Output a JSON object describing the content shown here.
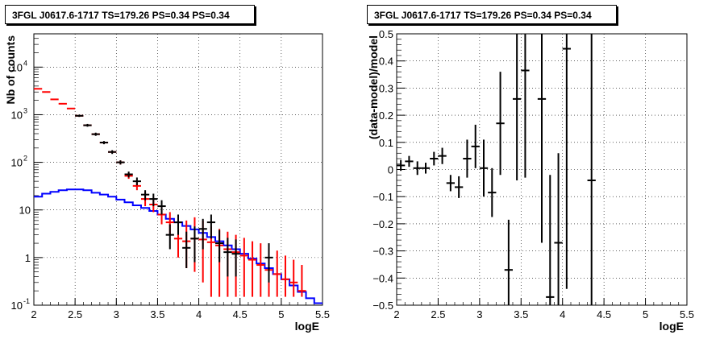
{
  "chart_data": [
    {
      "type": "line",
      "title": "3FGL J0617.6-1717 TS=179.26 PS=0.34 PS=0.34",
      "xlabel": "logE",
      "ylabel": "Nb of counts",
      "xlim": [
        2,
        5.5
      ],
      "ylim": [
        0.1,
        50000
      ],
      "yscale": "log",
      "grid": true,
      "xticks": [
        "2",
        "2.5",
        "3",
        "3.5",
        "4",
        "4.5",
        "5",
        "5.5"
      ],
      "yticks": [
        "10^-1",
        "1",
        "10",
        "10^2",
        "10^3",
        "10^4"
      ],
      "series": [
        {
          "color": "#0000ff",
          "style": "step",
          "x": [
            2.05,
            2.15,
            2.25,
            2.35,
            2.45,
            2.55,
            2.65,
            2.75,
            2.85,
            2.95,
            3.05,
            3.15,
            3.25,
            3.35,
            3.45,
            3.55,
            3.65,
            3.75,
            3.85,
            3.95,
            4.05,
            4.15,
            4.25,
            4.35,
            4.45,
            4.55,
            4.65,
            4.75,
            4.85,
            4.95,
            5.05,
            5.15,
            5.25,
            5.35,
            5.45
          ],
          "y": [
            19,
            22,
            24,
            26,
            27,
            27,
            26,
            23,
            21,
            19,
            16.5,
            14.5,
            12.5,
            11,
            9.5,
            8,
            6.5,
            5.5,
            4.6,
            3.9,
            3.3,
            2.7,
            2.2,
            1.8,
            1.5,
            1.2,
            0.95,
            0.75,
            0.6,
            0.45,
            0.35,
            0.26,
            0.19,
            0.14,
            0.11
          ]
        },
        {
          "color": "#ff0000",
          "style": "errorbar",
          "x": [
            2.05,
            2.15,
            2.25,
            2.35,
            2.45,
            2.55,
            2.65,
            2.75,
            2.85,
            2.95,
            3.05,
            3.15,
            3.25,
            3.35,
            3.45,
            3.55,
            3.65,
            3.75,
            3.85,
            3.95,
            4.05,
            4.15,
            4.25,
            4.35,
            4.45,
            4.55,
            4.65,
            4.75,
            4.85,
            4.95,
            5.05,
            5.15,
            5.25
          ],
          "y": [
            3500,
            3000,
            2100,
            1700,
            1350,
            950,
            600,
            390,
            260,
            165,
            100,
            52,
            32,
            17,
            13,
            8,
            5.5,
            2.5,
            2.2,
            2.5,
            2.4,
            2.1,
            1.8,
            1.5,
            1.3,
            1.1,
            0.9,
            0.7,
            0.55,
            0.45,
            0.35,
            0.3,
            0.2
          ],
          "ylo": [
            3500,
            3000,
            2100,
            1700,
            1350,
            950,
            600,
            390,
            260,
            165,
            90,
            45,
            26,
            12,
            9,
            5,
            3,
            1,
            0.6,
            0.5,
            0.3,
            0.15,
            0.15,
            0.15,
            0.15,
            0.15,
            0.15,
            0.15,
            0.15,
            0.15,
            0.15,
            0.15,
            0.15
          ],
          "yhi": [
            3500,
            3000,
            2100,
            1700,
            1350,
            950,
            600,
            390,
            260,
            165,
            110,
            60,
            40,
            24,
            18,
            12,
            9,
            5.5,
            6,
            7,
            6,
            4.5,
            4,
            3.5,
            3,
            2.6,
            2.2,
            2,
            1.6,
            1.4,
            1.1,
            0.9,
            0.7
          ]
        },
        {
          "color": "#000000",
          "style": "errorbar",
          "x": [
            2.55,
            2.65,
            2.75,
            2.85,
            2.95,
            3.05,
            3.15,
            3.25,
            3.35,
            3.45,
            3.55,
            3.65,
            3.75,
            3.85,
            3.95,
            4.05,
            4.15,
            4.25,
            4.35,
            4.45,
            4.85
          ],
          "y": [
            950,
            600,
            390,
            260,
            165,
            100,
            56,
            40,
            21,
            17,
            12,
            3,
            5.5,
            1.6,
            2.5,
            4,
            5.5,
            2,
            1.3,
            1.2,
            1
          ],
          "ylo": [
            900,
            560,
            360,
            240,
            150,
            90,
            48,
            33,
            16,
            12,
            8,
            1.5,
            3,
            0.6,
            0.8,
            1.5,
            2.5,
            0.8,
            0.4,
            0.4,
            0.3
          ],
          "yhi": [
            1000,
            640,
            420,
            280,
            180,
            110,
            64,
            48,
            26,
            22,
            16,
            5,
            8,
            3.5,
            4.5,
            6.5,
            8,
            3.8,
            2.6,
            2.4,
            2
          ]
        }
      ]
    },
    {
      "type": "scatter",
      "title": "3FGL J0617.6-1717 TS=179.26 PS=0.34 PS=0.34",
      "xlabel": "logE",
      "ylabel": "(data-model)/model",
      "xlim": [
        2,
        5.5
      ],
      "ylim": [
        -0.5,
        0.5
      ],
      "grid": true,
      "xticks": [
        "2",
        "2.5",
        "3",
        "3.5",
        "4",
        "4.5",
        "5",
        "5.5"
      ],
      "yticks": [
        "−0.5",
        "−0.4",
        "−0.3",
        "−0.2",
        "−0.1",
        "0",
        "0.1",
        "0.2",
        "0.3",
        "0.4",
        "0.5"
      ],
      "series": [
        {
          "color": "#000000",
          "style": "errorbar",
          "x": [
            2.05,
            2.15,
            2.25,
            2.35,
            2.45,
            2.55,
            2.65,
            2.75,
            2.85,
            2.95,
            3.05,
            3.15,
            3.25,
            3.35,
            3.45,
            3.55,
            3.75,
            3.85,
            3.95,
            4.05,
            4.35
          ],
          "y": [
            0.015,
            0.03,
            0.005,
            0.005,
            0.04,
            0.05,
            -0.05,
            -0.065,
            0.04,
            0.085,
            0.005,
            -0.085,
            0.17,
            -0.37,
            0.26,
            0.365,
            0.26,
            -0.47,
            -0.27,
            0.445,
            -0.04
          ],
          "ylo": [
            -0.005,
            0.01,
            -0.02,
            -0.015,
            0.015,
            0.02,
            -0.08,
            -0.105,
            -0.03,
            0.005,
            -0.1,
            -0.175,
            -0.02,
            -0.55,
            -0.04,
            -0.03,
            -0.27,
            -0.6,
            -0.6,
            -0.44,
            -0.6
          ],
          "yhi": [
            0.035,
            0.05,
            0.03,
            0.025,
            0.065,
            0.08,
            -0.02,
            -0.025,
            0.11,
            0.165,
            0.11,
            0.005,
            0.36,
            -0.185,
            0.56,
            0.76,
            0.79,
            -0.02,
            0.06,
            0.6,
            0.6
          ]
        }
      ]
    }
  ]
}
